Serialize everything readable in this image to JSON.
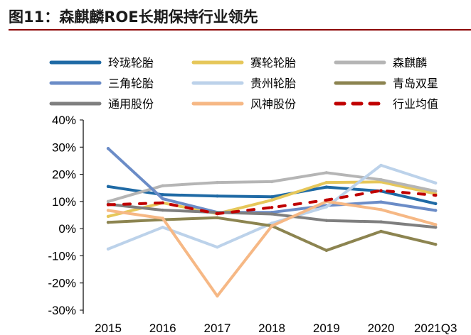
{
  "title": "图11：森麒麟ROE长期保持行业领先",
  "chart_data": {
    "type": "line",
    "title": "图11：森麒麟ROE长期保持行业领先",
    "xlabel": "",
    "ylabel": "",
    "categories": [
      "2015",
      "2016",
      "2017",
      "2018",
      "2019",
      "2020",
      "2021Q3"
    ],
    "yticks": [
      "40%",
      "30%",
      "20%",
      "10%",
      "0%",
      "-10%",
      "-20%",
      "-30%"
    ],
    "ylim": [
      -30,
      40
    ],
    "grid": false,
    "legend_position": "top",
    "series": [
      {
        "name": "玲珑轮胎",
        "color": "#1f6aa5",
        "style": "solid",
        "values": [
          15.5,
          12.5,
          12.0,
          11.7,
          15.3,
          13.8,
          9.2
        ]
      },
      {
        "name": "赛轮轮胎",
        "color": "#e6c75a",
        "style": "solid",
        "values": [
          4.5,
          9.5,
          5.5,
          10.5,
          17.0,
          17.2,
          12.8
        ]
      },
      {
        "name": "森麒麟",
        "color": "#b5b5b5",
        "style": "solid",
        "values": [
          10.0,
          15.8,
          17.0,
          17.3,
          20.6,
          18.0,
          13.8
        ]
      },
      {
        "name": "三角轮胎",
        "color": "#6b8cc7",
        "style": "solid",
        "values": [
          29.5,
          11.0,
          6.0,
          6.0,
          8.5,
          9.8,
          6.7
        ]
      },
      {
        "name": "贵州轮胎",
        "color": "#bcd2ea",
        "style": "solid",
        "values": [
          -7.5,
          0.5,
          -6.8,
          2.0,
          8.0,
          23.3,
          16.8
        ]
      },
      {
        "name": "青岛双星",
        "color": "#8c8450",
        "style": "solid",
        "values": [
          2.3,
          3.3,
          4.0,
          1.0,
          -8.0,
          -1.0,
          -5.8
        ]
      },
      {
        "name": "通用股份",
        "color": "#7f7f7f",
        "style": "solid",
        "values": [
          9.0,
          6.8,
          6.0,
          5.4,
          3.0,
          2.5,
          0.5
        ]
      },
      {
        "name": "风神股份",
        "color": "#f6b885",
        "style": "solid",
        "values": [
          6.7,
          3.8,
          -24.8,
          1.0,
          10.0,
          7.0,
          1.5
        ]
      },
      {
        "name": "行业均值",
        "color": "#c00000",
        "style": "dotted",
        "values": [
          8.8,
          9.5,
          5.5,
          7.8,
          10.5,
          14.0,
          12.3
        ]
      }
    ]
  }
}
